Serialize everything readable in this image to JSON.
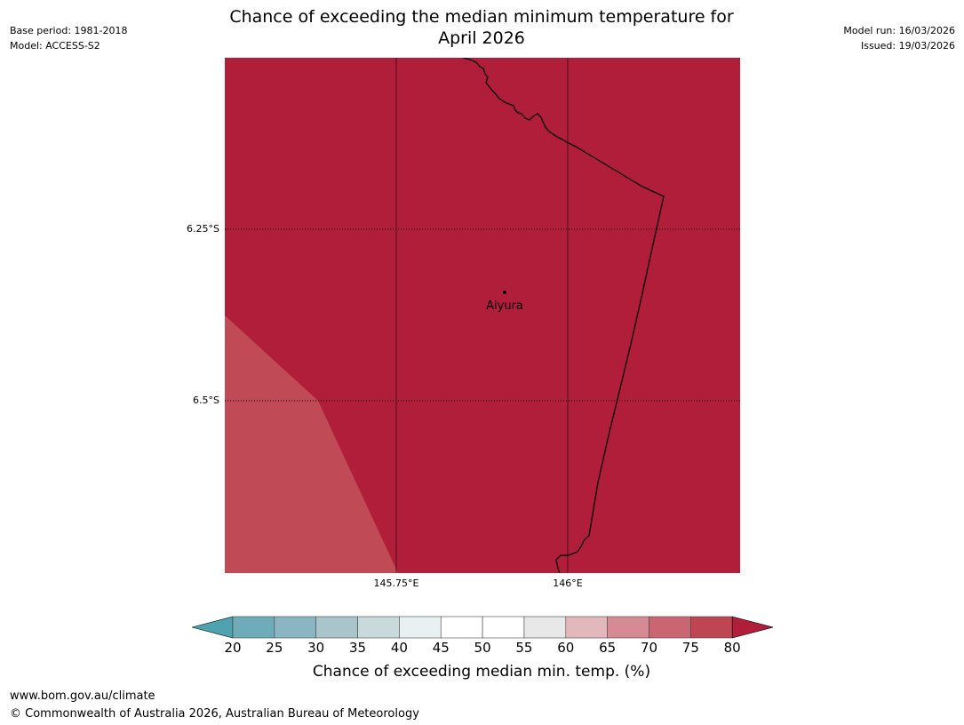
{
  "header": {
    "base_period": "Base period: 1981-2018",
    "model": "Model: ACCESS-S2",
    "model_run": "Model run: 16/03/2026",
    "issued": "Issued: 19/03/2026",
    "title_line1": "Chance of exceeding the median minimum temperature for",
    "title_line2": "April 2026"
  },
  "map": {
    "lat_labels": [
      "6.25°S",
      "6.5°S"
    ],
    "lon_labels": [
      "145.75°E",
      "146°E"
    ],
    "place": {
      "name": "Aiyura"
    },
    "regions": [
      {
        "name": "main-area",
        "color": "#b01e3a",
        "value_range": "> 80%"
      },
      {
        "name": "south-west-area",
        "color": "#c04a56",
        "value_range": "75-80%"
      }
    ]
  },
  "colorbar": {
    "ticks": [
      "20",
      "25",
      "30",
      "35",
      "40",
      "45",
      "50",
      "55",
      "60",
      "65",
      "70",
      "75",
      "80"
    ],
    "colors": [
      "#4fa2b0",
      "#6eacba",
      "#8ab6c3",
      "#a9c5cc",
      "#c9dadd",
      "#e9f0f2",
      "#ffffff",
      "#ffffff",
      "#e8e8e8",
      "#e2b8bc",
      "#d58a94",
      "#ca6672",
      "#bf4553",
      "#b01e3a"
    ],
    "title": "Chance of exceeding median min. temp. (%)"
  },
  "footer": {
    "url": "www.bom.gov.au/climate",
    "copyright": "© Commonwealth of Australia 2026, Australian Bureau of Meteorology"
  }
}
